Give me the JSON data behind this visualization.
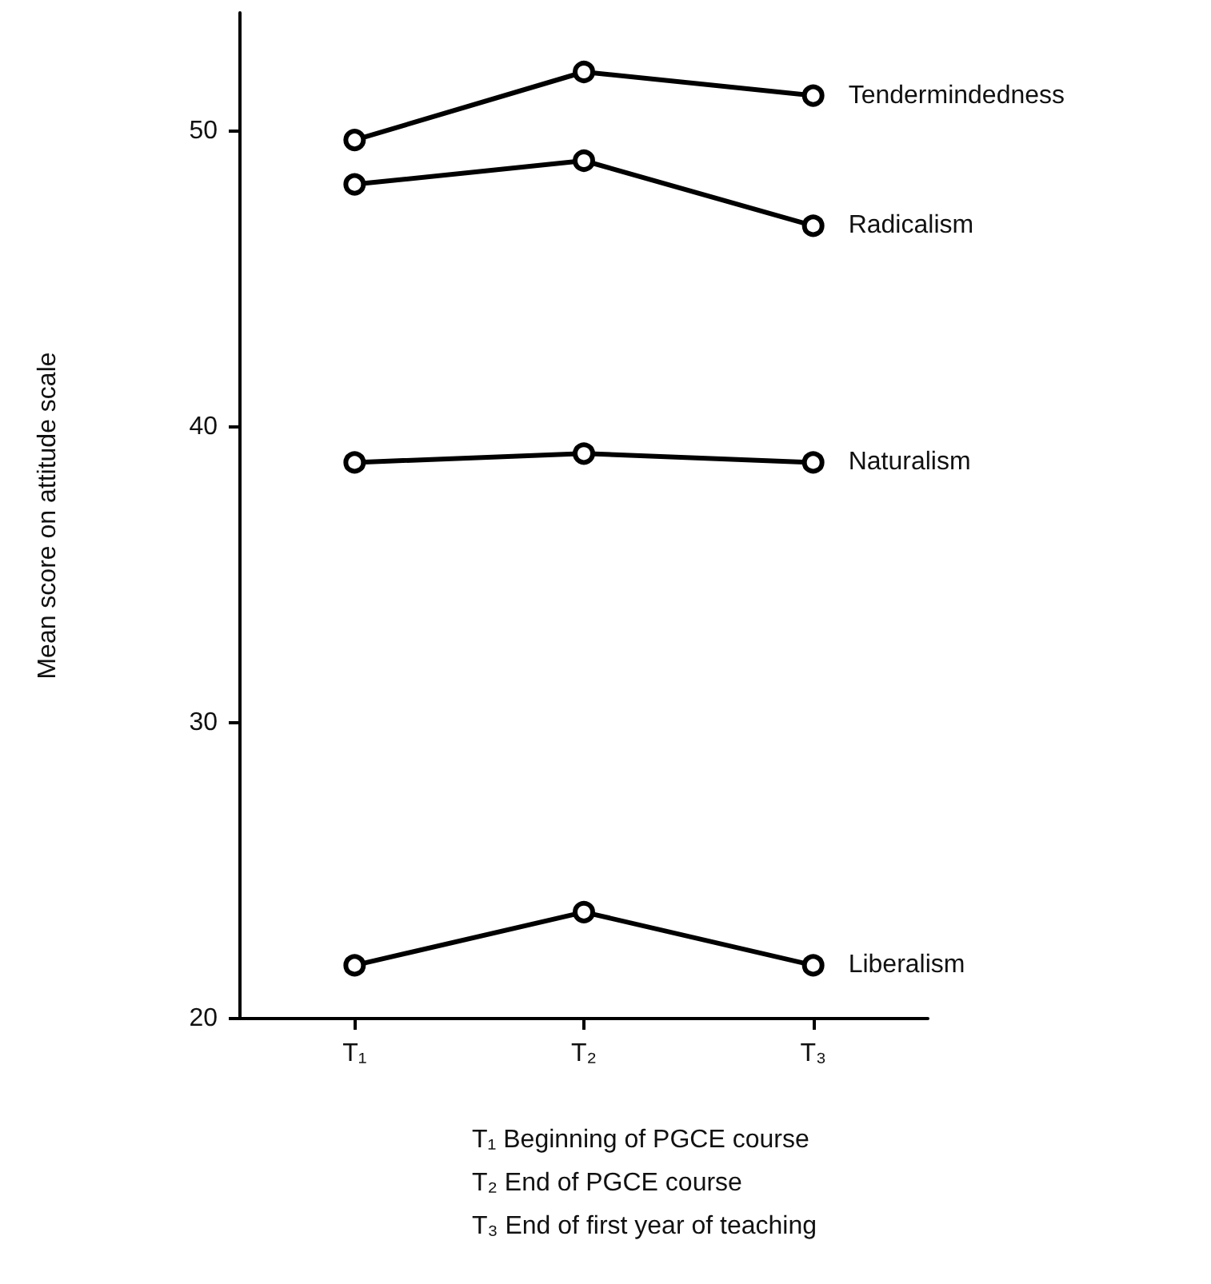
{
  "chart_data": {
    "type": "line",
    "ylabel": "Mean score on attitude scale",
    "categories": [
      "T₁",
      "T₂",
      "T₃"
    ],
    "series": [
      {
        "name": "Tendermindedness",
        "color": "#000000",
        "values": [
          49.7,
          52.0,
          51.2
        ]
      },
      {
        "name": "Radicalism",
        "color": "#000000",
        "values": [
          48.2,
          49.0,
          46.8
        ]
      },
      {
        "name": "Naturalism",
        "color": "#000000",
        "values": [
          38.8,
          39.1,
          38.8
        ]
      },
      {
        "name": "Liberalism",
        "color": "#000000",
        "values": [
          21.8,
          23.6,
          21.8
        ]
      }
    ],
    "ylim": [
      20,
      54
    ],
    "yticks": [
      20,
      30,
      40,
      50
    ],
    "grid": false,
    "marker": "circle",
    "line_style": "solid",
    "annotations": [
      "T₁ Beginning of PGCE course",
      "T₂ End of PGCE course",
      "T₃ End of first year of teaching"
    ]
  }
}
